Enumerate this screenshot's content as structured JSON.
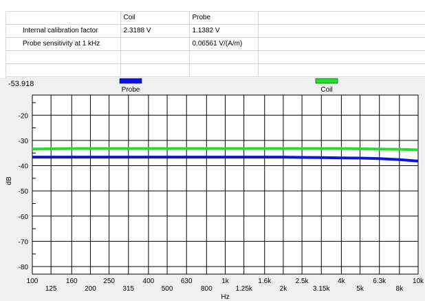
{
  "colors": {
    "probe": "#0a12e6",
    "coil": "#22e02a",
    "plot_bg": "#ffffff",
    "panel_bg": "#f0f0f0",
    "grid": "#000000"
  },
  "calibration_table": {
    "headers": [
      "",
      "Coil",
      "Probe",
      ""
    ],
    "rows": [
      [
        "Internal calibration factor",
        "2.3188 V",
        "1.1382 V",
        ""
      ],
      [
        "Probe sensitivity at 1 kHz",
        "",
        "0.06561 V/(A/m)",
        ""
      ],
      [
        "",
        "",
        "",
        ""
      ],
      [
        "",
        "",
        "",
        ""
      ]
    ]
  },
  "cursor_readout": "-53.918",
  "chart_data": {
    "type": "line",
    "title": "",
    "xlabel": "Hz",
    "ylabel": "dB",
    "xscale": "log",
    "xlim": [
      100,
      10000
    ],
    "ylim": [
      -83,
      -12
    ],
    "grid": true,
    "legend_position": "top",
    "x_tick_values": [
      100,
      125,
      160,
      200,
      250,
      315,
      400,
      500,
      630,
      800,
      1000,
      1250,
      1600,
      2000,
      2500,
      3150,
      4000,
      5000,
      6300,
      8000,
      10000
    ],
    "x_tick_labels": [
      "100",
      "125",
      "160",
      "200",
      "250",
      "315",
      "400",
      "500",
      "630",
      "800",
      "1k",
      "1.25k",
      "1.6k",
      "2k",
      "2.5k",
      "3.15k",
      "4k",
      "5k",
      "6.3k",
      "8k",
      "10k"
    ],
    "y_ticks": [
      -20,
      -30,
      -40,
      -50,
      -60,
      -70,
      -80
    ],
    "y_minor_ticks": [
      -15,
      -25,
      -35,
      -45,
      -55,
      -65,
      -75
    ],
    "series": [
      {
        "name": "Probe",
        "color": "#0a12e6",
        "x": [
          100,
          125,
          160,
          200,
          250,
          315,
          400,
          500,
          630,
          800,
          1000,
          1250,
          1600,
          2000,
          2500,
          3150,
          4000,
          5000,
          6300,
          8000,
          10000
        ],
        "y": [
          -36.6,
          -36.6,
          -36.6,
          -36.6,
          -36.6,
          -36.6,
          -36.6,
          -36.6,
          -36.6,
          -36.6,
          -36.6,
          -36.6,
          -36.6,
          -36.6,
          -36.7,
          -36.8,
          -36.9,
          -37.0,
          -37.2,
          -37.6,
          -38.2
        ]
      },
      {
        "name": "Coil",
        "color": "#22e02a",
        "x": [
          100,
          125,
          160,
          200,
          250,
          315,
          400,
          500,
          630,
          800,
          1000,
          1250,
          1600,
          2000,
          2500,
          3150,
          4000,
          5000,
          6300,
          8000,
          10000
        ],
        "y": [
          -33.4,
          -33.3,
          -33.2,
          -33.2,
          -33.2,
          -33.2,
          -33.2,
          -33.2,
          -33.2,
          -33.2,
          -33.2,
          -33.2,
          -33.2,
          -33.2,
          -33.2,
          -33.2,
          -33.2,
          -33.3,
          -33.4,
          -33.5,
          -33.7
        ]
      }
    ]
  }
}
